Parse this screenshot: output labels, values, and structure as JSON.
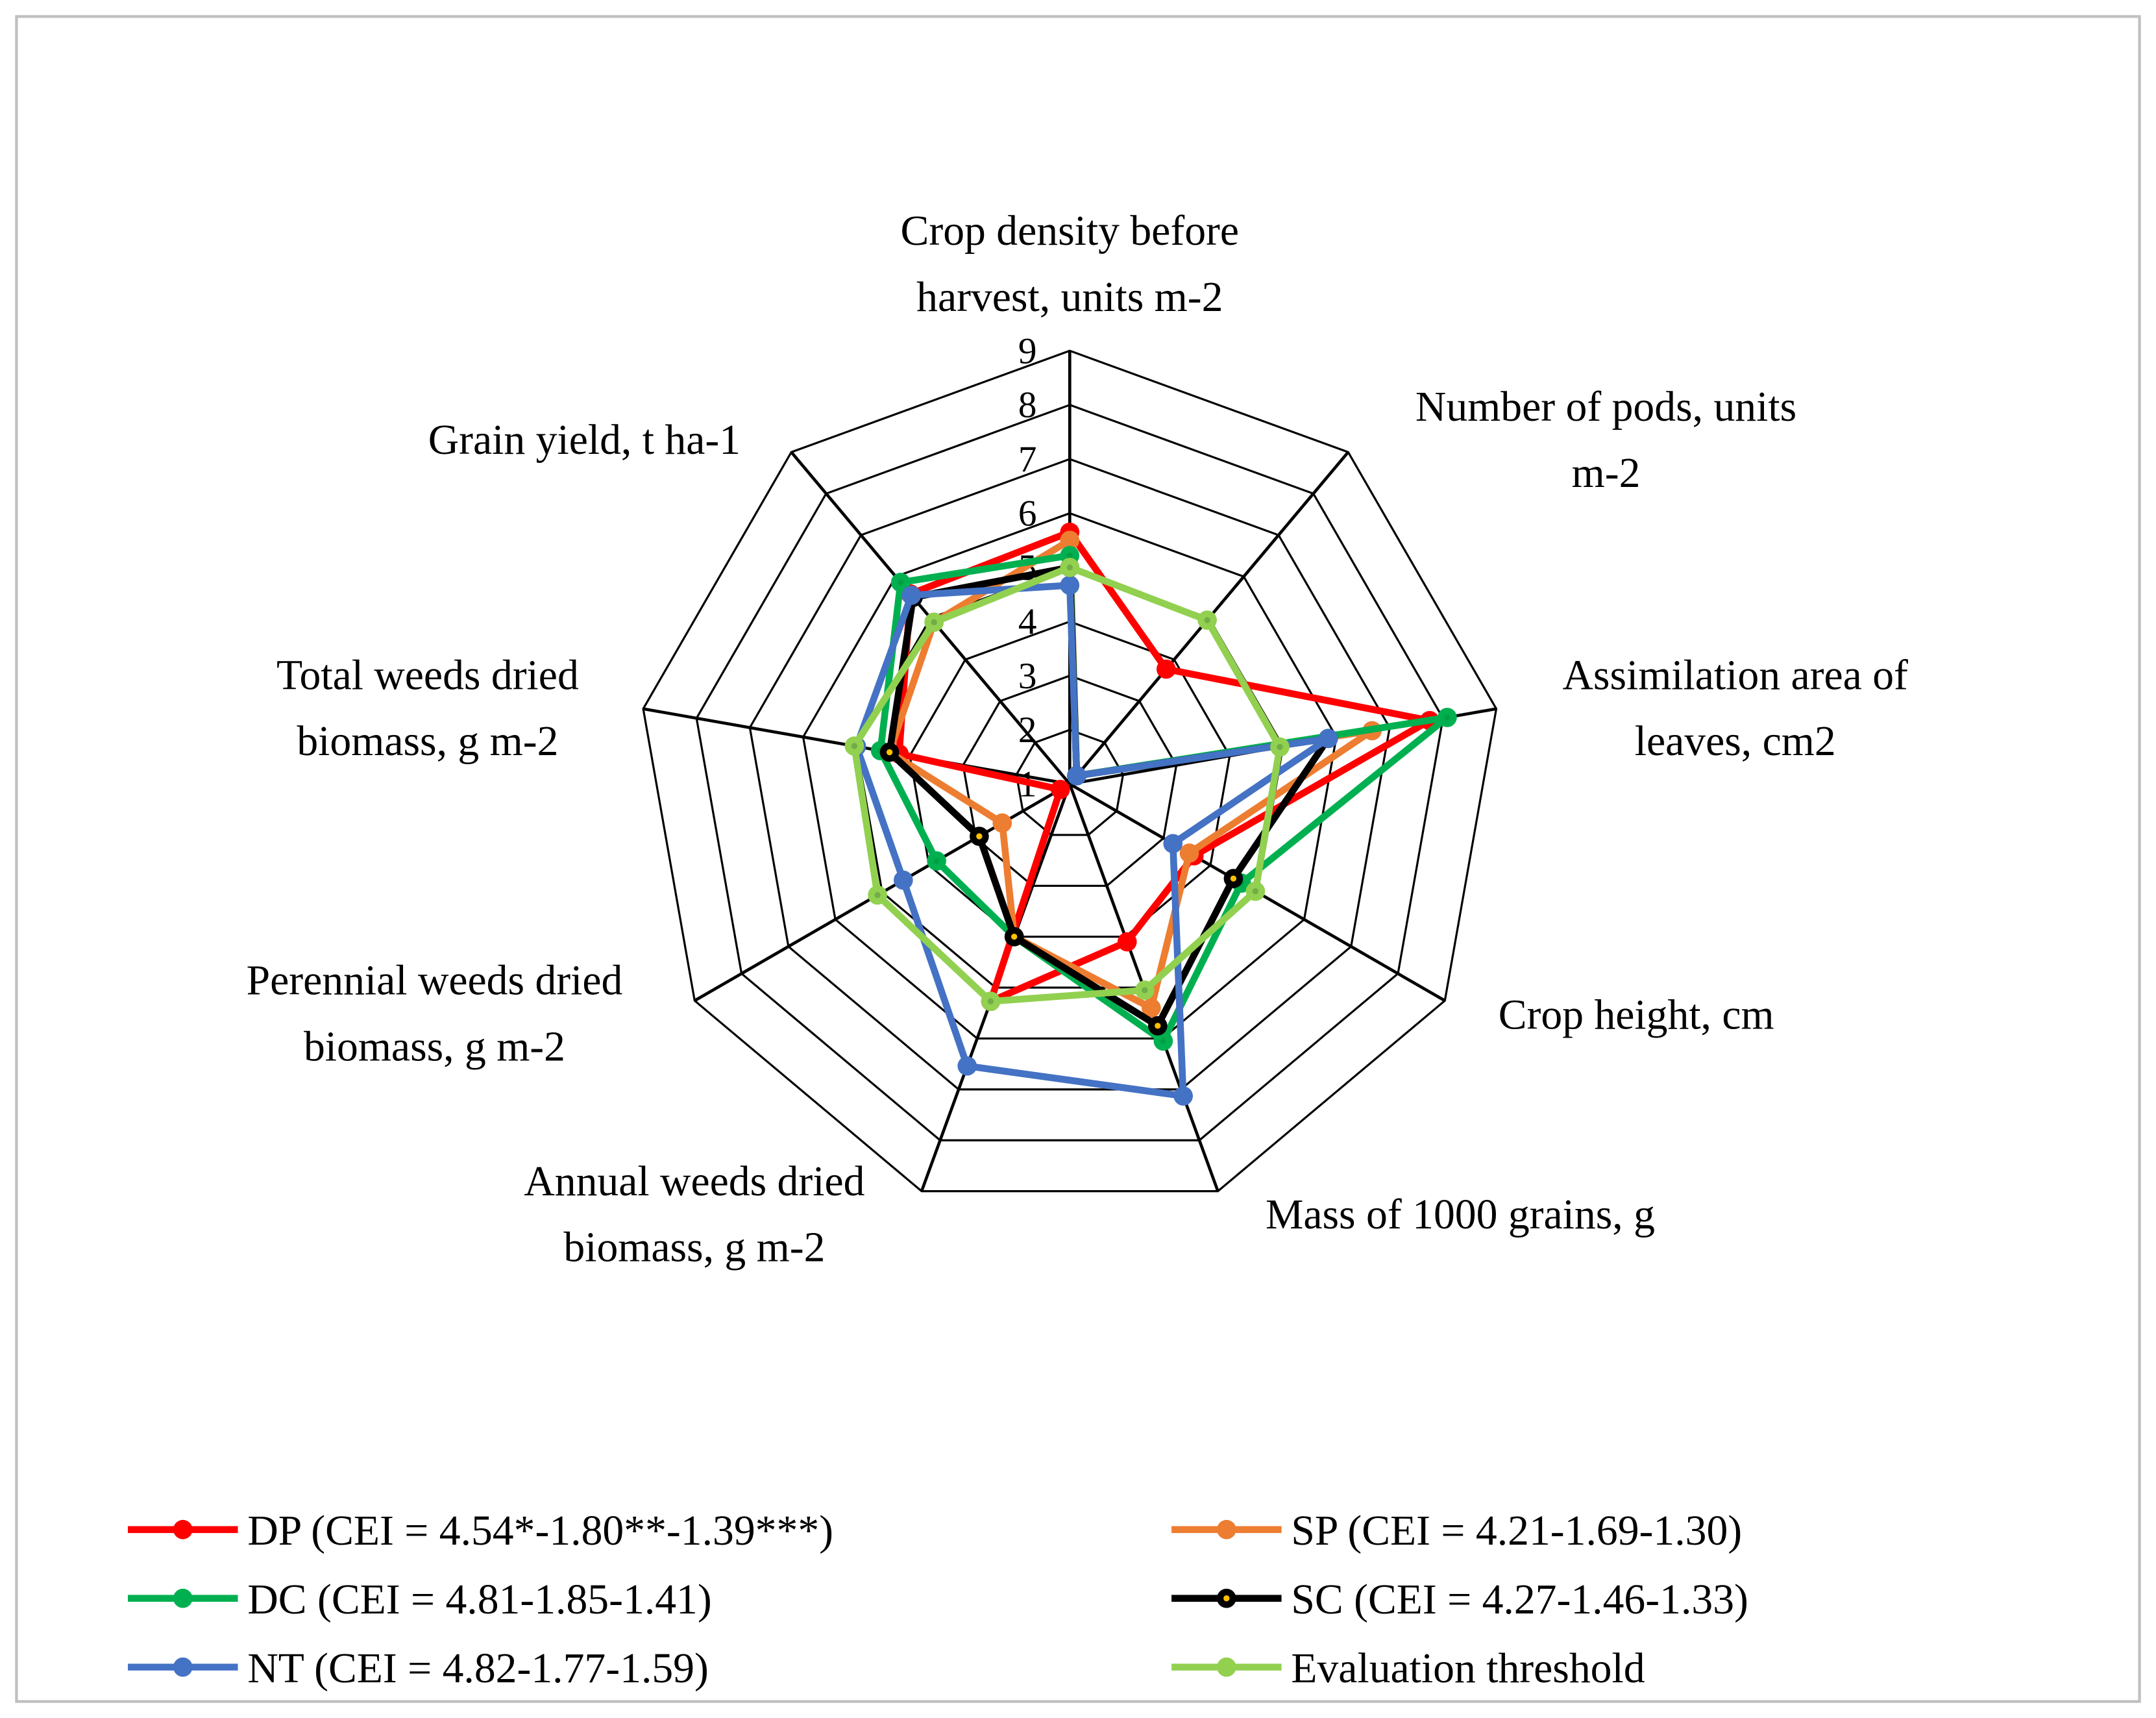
{
  "chart_data": {
    "type": "radar",
    "title": "",
    "axes": [
      [
        "Crop density before",
        "harvest, units m-2"
      ],
      [
        "Number of pods, units",
        "m-2"
      ],
      [
        "Assimilation area of",
        "leaves, cm2"
      ],
      [
        "Crop height, cm"
      ],
      [
        "Mass of 1000 grains, g"
      ],
      [
        "Annual weeds dried",
        "biomass, g m-2"
      ],
      [
        "Perennial weeds dried",
        "biomass, g m-2"
      ],
      [
        "Total weeds dried",
        "biomass, g m-2"
      ],
      [
        "Grain yield, t ha-1"
      ]
    ],
    "range": [
      1,
      9
    ],
    "ticks": [
      "1",
      "2",
      "3",
      "4",
      "5",
      "6",
      "7",
      "8",
      "9"
    ],
    "grid": true,
    "legend_position": "bottom",
    "series": [
      {
        "name": "DP (CEI = 4.54*-1.80**-1.39***)",
        "color": "#ff0000",
        "values": [
          5.65,
          3.77,
          7.75,
          3.65,
          4.1,
          5.27,
          1.2,
          4.2,
          5.58
        ]
      },
      {
        "name": "SP (CEI = 4.21-1.69-1.30)",
        "color": "#ed7d31",
        "values": [
          5.5,
          1.2,
          6.67,
          3.55,
          5.4,
          4.0,
          2.44,
          4.38,
          4.9
        ]
      },
      {
        "name": "DC (CEI = 4.81-1.85-1.41)",
        "color": "#00b050",
        "values": [
          5.22,
          1.2,
          8.08,
          4.66,
          6.05,
          4.0,
          3.84,
          4.55,
          5.86
        ]
      },
      {
        "name": "SC (CEI = 4.27-1.46-1.33)",
        "color": "#000000",
        "values": [
          5.0,
          1.2,
          5.85,
          4.49,
          5.75,
          4.0,
          2.93,
          4.38,
          5.5
        ]
      },
      {
        "name": "NT (CEI = 4.82-1.77-1.59)",
        "color": "#4472c4",
        "values": [
          4.67,
          1.2,
          5.85,
          3.2,
          7.13,
          6.54,
          4.55,
          5.0,
          5.55
        ]
      },
      {
        "name": "Evaluation threshold",
        "color": "#92d050",
        "values": [
          5.0,
          4.95,
          4.94,
          4.96,
          5.05,
          5.27,
          5.1,
          5.04,
          4.9
        ]
      }
    ]
  }
}
